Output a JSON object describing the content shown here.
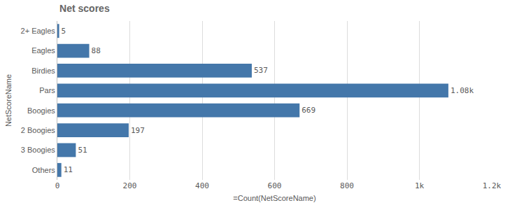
{
  "chart_data": {
    "type": "bar",
    "title": "Net scores",
    "orientation": "horizontal",
    "x_label": "=Count(NetScoreName)",
    "y_label": "NetScoreName",
    "categories": [
      "2+ Eagles",
      "Eagles",
      "Birdies",
      "Pars",
      "Boogies",
      "2 Boogies",
      "3 Boogies",
      "Others"
    ],
    "values": [
      5,
      88,
      537,
      1080,
      669,
      197,
      51,
      11
    ],
    "value_labels": [
      "5",
      "88",
      "537",
      "1.08k",
      "669",
      "197",
      "51",
      "11"
    ],
    "color": "#4477aa",
    "xlim": [
      0,
      1200
    ],
    "xticks": [
      0,
      200,
      400,
      600,
      800,
      {
        "value": 1000,
        "label": "1k"
      },
      {
        "value": 1200,
        "label": "1.2k"
      }
    ],
    "grid": true,
    "data_labels": true
  }
}
